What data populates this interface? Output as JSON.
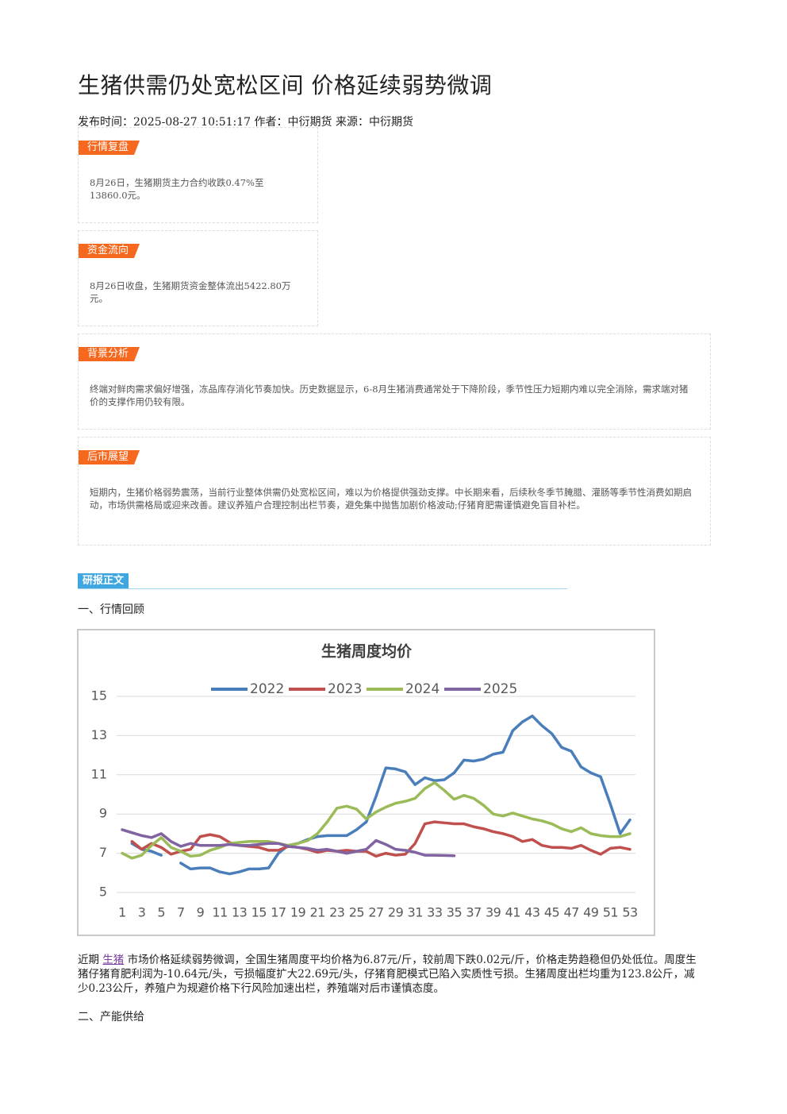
{
  "header": {
    "title": "生猪供需仍处宽松区间 价格延续弱势微调",
    "meta": "发布时间：2025-08-27 10:51:17 作者：中衍期货 来源：中衍期货"
  },
  "sections": [
    {
      "tag": "行情复盘",
      "text": "8月26日，生猪期货主力合约收跌0.47%至13860.0元。"
    },
    {
      "tag": "资金流向",
      "text": "8月26日收盘，生猪期货资金整体流出5422.80万元。"
    },
    {
      "tag": "背景分析",
      "text": "终端对鲜肉需求偏好增强，冻品库存消化节奏加快。历史数据显示，6-8月生猪消费通常处于下降阶段，季节性压力短期内难以完全消除，需求端对猪价的支撑作用仍较有限。"
    },
    {
      "tag": "后市展望",
      "text": "短期内，生猪价格弱势震荡，当前行业整体供需仍处宽松区间，难以为价格提供强劲支撑。中长期来看，后续秋冬季节腌腊、灌肠等季节性消费如期启动，市场供需格局或迎来改善。建议养殖户合理控制出栏节奏，避免集中抛售加剧价格波动;仔猪育肥需谨慎避免盲目补栏。"
    }
  ],
  "report": {
    "tag": "研报正文",
    "heading1": "一、行情回顾",
    "para_start": "近期",
    "link": "生猪",
    "para_rest": "市场价格延续弱势微调，全国生猪周度平均价格为6.87元/斤，较前周下跌0.02元/斤，价格走势趋稳但仍处低位。周度生猪仔猪育肥利润为-10.64元/头，亏损幅度扩大22.69元/头，仔猪育肥模式已陷入实质性亏损。生猪周度出栏均重为123.8公斤，减少0.23公斤，养殖户为规避价格下行风险加速出栏，养殖端对后市谨慎态度。",
    "heading2": "二、产能供给"
  },
  "chart_data": {
    "type": "line",
    "title": "生猪周度均价",
    "legend": "top",
    "grid": true,
    "x": [
      1,
      2,
      3,
      4,
      5,
      6,
      7,
      8,
      9,
      10,
      11,
      12,
      13,
      14,
      15,
      16,
      17,
      18,
      19,
      20,
      21,
      22,
      23,
      24,
      25,
      26,
      27,
      28,
      29,
      30,
      31,
      32,
      33,
      34,
      35,
      36,
      37,
      38,
      39,
      40,
      41,
      42,
      43,
      44,
      45,
      46,
      47,
      48,
      49,
      50,
      51,
      52,
      53
    ],
    "xlim": [
      1,
      53
    ],
    "xticks": [
      1,
      3,
      5,
      7,
      9,
      11,
      13,
      15,
      17,
      19,
      21,
      23,
      25,
      27,
      29,
      31,
      33,
      35,
      37,
      39,
      41,
      43,
      45,
      47,
      49,
      51,
      53
    ],
    "ylim": [
      5,
      15
    ],
    "yticks": [
      5,
      7,
      9,
      11,
      13,
      15
    ],
    "series": [
      {
        "name": "2022",
        "color": "#4a7ebb",
        "values": [
          null,
          7.5,
          7.2,
          7.1,
          6.9,
          null,
          6.5,
          6.2,
          6.25,
          6.25,
          6.05,
          5.95,
          6.05,
          6.2,
          6.2,
          6.25,
          7.0,
          7.4,
          7.5,
          7.7,
          7.85,
          7.9,
          7.9,
          7.9,
          8.2,
          8.6,
          9.9,
          11.35,
          11.3,
          11.15,
          10.5,
          10.85,
          10.7,
          10.75,
          11.1,
          11.75,
          11.7,
          11.8,
          12.05,
          12.15,
          13.25,
          13.7,
          14.0,
          13.5,
          13.1,
          12.4,
          12.2,
          11.4,
          11.1,
          10.9,
          9.5,
          8.0,
          8.7
        ]
      },
      {
        "name": "2023",
        "color": "#c0504d",
        "values": [
          null,
          7.6,
          7.2,
          7.5,
          7.3,
          6.95,
          7.1,
          7.2,
          7.85,
          7.95,
          7.85,
          7.55,
          7.4,
          7.35,
          7.3,
          7.15,
          7.15,
          7.35,
          7.3,
          7.2,
          7.05,
          7.15,
          7.1,
          7.15,
          7.1,
          7.1,
          6.85,
          7.0,
          6.9,
          6.95,
          7.5,
          8.5,
          8.6,
          8.55,
          8.5,
          8.5,
          8.35,
          8.25,
          8.1,
          8.0,
          7.85,
          7.6,
          7.7,
          7.4,
          7.3,
          7.3,
          7.25,
          7.4,
          7.15,
          6.95,
          7.25,
          7.3,
          7.2
        ]
      },
      {
        "name": "2024",
        "color": "#9bbb59",
        "values": [
          7.0,
          6.75,
          6.9,
          7.4,
          7.8,
          7.3,
          7.1,
          6.85,
          6.9,
          7.15,
          7.3,
          7.5,
          7.55,
          7.6,
          7.6,
          7.6,
          7.5,
          7.4,
          7.5,
          7.65,
          8.0,
          8.6,
          9.3,
          9.4,
          9.25,
          8.75,
          9.1,
          9.35,
          9.55,
          9.65,
          9.8,
          10.3,
          10.6,
          10.2,
          9.75,
          9.95,
          9.8,
          9.45,
          9.0,
          8.9,
          9.05,
          8.9,
          8.75,
          8.65,
          8.5,
          8.25,
          8.1,
          8.3,
          8.0,
          7.9,
          7.85,
          7.85,
          8.0
        ]
      },
      {
        "name": "2025",
        "color": "#8064a2",
        "values": [
          8.2,
          8.05,
          7.9,
          7.8,
          8.0,
          7.6,
          7.35,
          7.5,
          7.4,
          7.4,
          7.4,
          7.45,
          7.4,
          7.4,
          7.45,
          7.5,
          7.5,
          7.35,
          7.3,
          7.25,
          7.15,
          7.2,
          7.1,
          7.0,
          7.1,
          7.2,
          7.65,
          7.45,
          7.2,
          7.15,
          7.05,
          6.9,
          6.9,
          6.89,
          6.87,
          null,
          null,
          null,
          null,
          null,
          null,
          null,
          null,
          null,
          null,
          null,
          null,
          null,
          null,
          null,
          null,
          null,
          null
        ]
      }
    ]
  }
}
